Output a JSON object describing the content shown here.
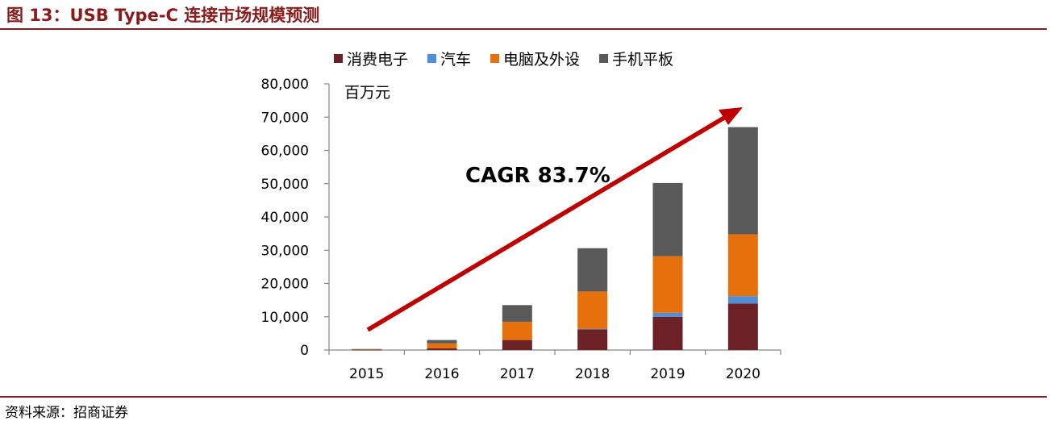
{
  "figure_label": "图 13：USB Type-C 连接市场规模预测",
  "source": "资料来源：招商证券",
  "colors": {
    "title": "#8B1A1A",
    "rule": "#8B1A1A",
    "arrow": "#C00000",
    "axis": "#868686"
  },
  "chart_data": {
    "type": "bar",
    "stacked": true,
    "categories": [
      "2015",
      "2016",
      "2017",
      "2018",
      "2019",
      "2020"
    ],
    "unit_label": "百万元",
    "annotation": "CAGR 83.7%",
    "ylim": [
      0,
      80000
    ],
    "yticks": [
      0,
      10000,
      20000,
      30000,
      40000,
      50000,
      60000,
      70000,
      80000
    ],
    "ytick_labels": [
      "0",
      "10,000",
      "20,000",
      "30,000",
      "40,000",
      "50,000",
      "60,000",
      "70,000",
      "80,000"
    ],
    "grid": false,
    "legend_position": "top",
    "series": [
      {
        "name": "消费电子",
        "color": "#6B2125",
        "values": [
          100,
          500,
          3000,
          6200,
          10000,
          14000
        ]
      },
      {
        "name": "汽车",
        "color": "#4F8FD8",
        "values": [
          0,
          0,
          0,
          200,
          1200,
          2200
        ]
      },
      {
        "name": "电脑及外设",
        "color": "#E5700C",
        "values": [
          100,
          1500,
          5500,
          11200,
          17000,
          18600
        ]
      },
      {
        "name": "手机平板",
        "color": "#595959",
        "values": [
          100,
          1000,
          5000,
          13000,
          22000,
          32200
        ]
      }
    ]
  }
}
